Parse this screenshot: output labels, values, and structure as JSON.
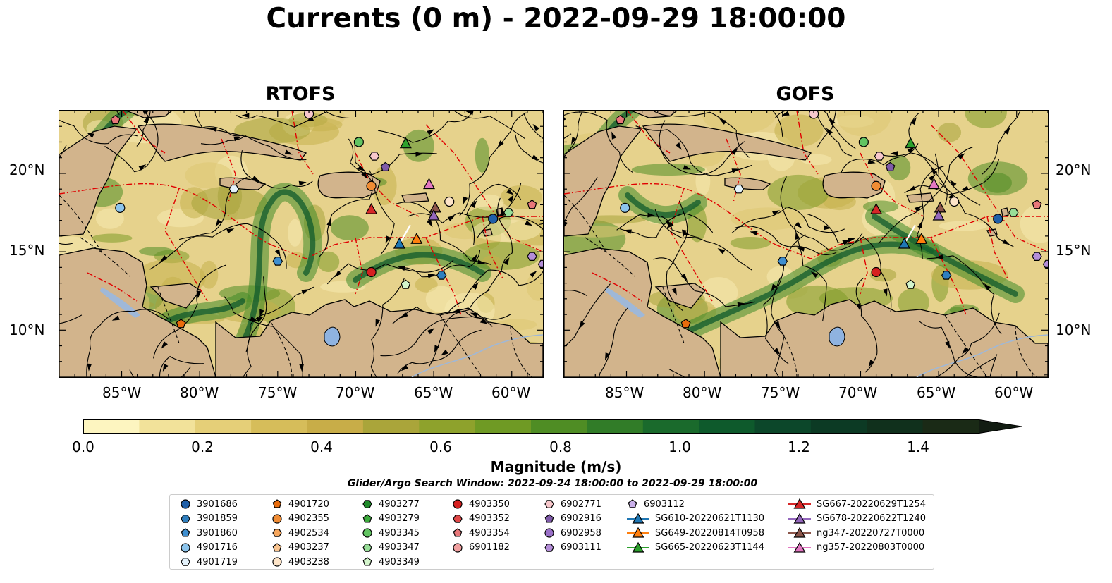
{
  "title": "Currents (0 m) - 2022-09-29 18:00:00",
  "panels": [
    {
      "title": "RTOFS"
    },
    {
      "title": "GOFS"
    }
  ],
  "lon_ticks": [
    "85°W",
    "80°W",
    "75°W",
    "70°W",
    "65°W",
    "60°W"
  ],
  "lat_ticks": [
    "20°N",
    "15°N",
    "10°N"
  ],
  "colorbar": {
    "label": "Magnitude (m/s)",
    "ticks": [
      "0.0",
      "0.2",
      "0.4",
      "0.6",
      "0.8",
      "1.0",
      "1.2",
      "1.4"
    ],
    "colors": [
      "#fdf5c0",
      "#f2e29a",
      "#e5cf78",
      "#d6bd5a",
      "#c8ad48",
      "#aaa53a",
      "#8ea22c",
      "#6f9a24",
      "#4f8d24",
      "#317c28",
      "#1a6a2c",
      "#0e5a2c",
      "#0c472a",
      "#0c3a24",
      "#10301c",
      "#1a2a16"
    ]
  },
  "search_window": "Glider/Argo Search Window: 2022-09-24 18:00:00 to 2022-09-29 18:00:00",
  "legend": {
    "columns": [
      [
        {
          "label": "3901686",
          "shape": "circle",
          "color": "#1f5fa8"
        },
        {
          "label": "3901859",
          "shape": "hexagon",
          "color": "#2f7fbf"
        },
        {
          "label": "3901860",
          "shape": "pentagon",
          "color": "#3f8fd0"
        },
        {
          "label": "4901716",
          "shape": "circle",
          "color": "#8cc4ec"
        },
        {
          "label": "4901719",
          "shape": "hexagon",
          "color": "#e4f2fb"
        }
      ],
      [
        {
          "label": "4901720",
          "shape": "pentagon",
          "color": "#e86c0c"
        },
        {
          "label": "4902355",
          "shape": "circle",
          "color": "#f08c34"
        },
        {
          "label": "4902534",
          "shape": "hexagon",
          "color": "#f6a65c"
        },
        {
          "label": "4903237",
          "shape": "pentagon",
          "color": "#f9c490"
        },
        {
          "label": "4903238",
          "shape": "circle",
          "color": "#fde4c8"
        }
      ],
      [
        {
          "label": "4903277",
          "shape": "hexagon",
          "color": "#1f8a2a"
        },
        {
          "label": "4903279",
          "shape": "pentagon",
          "color": "#3caa3c"
        },
        {
          "label": "4903345",
          "shape": "circle",
          "color": "#62c462"
        },
        {
          "label": "4903347",
          "shape": "hexagon",
          "color": "#98de98"
        },
        {
          "label": "4903349",
          "shape": "pentagon",
          "color": "#d4f5cc"
        }
      ],
      [
        {
          "label": "4903350",
          "shape": "circle",
          "color": "#d62020"
        },
        {
          "label": "4903352",
          "shape": "hexagon",
          "color": "#e04848"
        },
        {
          "label": "4903354",
          "shape": "pentagon",
          "color": "#e8787a"
        },
        {
          "label": "6901182",
          "shape": "circle",
          "color": "#f0a0a0"
        }
      ],
      [
        {
          "label": "6902771",
          "shape": "hexagon",
          "color": "#f8c8cc"
        },
        {
          "label": "6902916",
          "shape": "pentagon",
          "color": "#7f5aa8"
        },
        {
          "label": "6902958",
          "shape": "circle",
          "color": "#9a70c8"
        },
        {
          "label": "6903111",
          "shape": "hexagon",
          "color": "#b48ed8"
        }
      ],
      [
        {
          "label": "6903112",
          "shape": "pentagon",
          "color": "#cab0ea"
        },
        {
          "label": "SG610-20220621T1130",
          "shape": "triangle",
          "color": "#1f77b4"
        },
        {
          "label": "SG649-20220814T0958",
          "shape": "triangle",
          "color": "#ff7f0e"
        },
        {
          "label": "SG665-20220623T1144",
          "shape": "triangle",
          "color": "#2ca02c"
        }
      ],
      [
        {
          "label": "SG667-20220629T1254",
          "shape": "triangle",
          "color": "#d62728"
        },
        {
          "label": "SG678-20220622T1240",
          "shape": "triangle",
          "color": "#9467bd"
        },
        {
          "label": "ng347-20220727T0000",
          "shape": "triangle",
          "color": "#8c564b"
        },
        {
          "label": "ng357-20220803T0000",
          "shape": "triangle",
          "color": "#e377c2"
        }
      ]
    ]
  },
  "map_extent": {
    "lon": [
      -89,
      -58
    ],
    "lat": [
      7,
      24
    ]
  },
  "markers": [
    {
      "lon": -85.1,
      "lat": 17.8,
      "shape": "circle",
      "color": "#8cc4ec"
    },
    {
      "lon": -77.8,
      "lat": 19.0,
      "shape": "hexagon",
      "color": "#e4f2fb"
    },
    {
      "lon": -85.4,
      "lat": 23.4,
      "shape": "pentagon",
      "color": "#e8787a"
    },
    {
      "lon": -73.0,
      "lat": 23.8,
      "shape": "circle",
      "color": "#f8c8cc"
    },
    {
      "lon": -69.8,
      "lat": 22.0,
      "shape": "circle",
      "color": "#62c462"
    },
    {
      "lon": -68.8,
      "lat": 21.1,
      "shape": "hexagon",
      "color": "#f8c8cc"
    },
    {
      "lon": -68.1,
      "lat": 20.4,
      "shape": "pentagon",
      "color": "#7f5aa8"
    },
    {
      "lon": -69.0,
      "lat": 19.2,
      "shape": "circle",
      "color": "#f08c34"
    },
    {
      "lon": -66.8,
      "lat": 21.9,
      "shape": "triangle",
      "color": "#2ca02c"
    },
    {
      "lon": -69.0,
      "lat": 17.7,
      "shape": "triangle",
      "color": "#d62728"
    },
    {
      "lon": -65.3,
      "lat": 19.3,
      "shape": "triangle",
      "color": "#e377c2"
    },
    {
      "lon": -64.9,
      "lat": 17.8,
      "shape": "triangle",
      "color": "#8c564b"
    },
    {
      "lon": -65.0,
      "lat": 17.3,
      "shape": "triangle",
      "color": "#9467bd"
    },
    {
      "lon": -64.0,
      "lat": 18.2,
      "shape": "circle",
      "color": "#fde4c8"
    },
    {
      "lon": -61.2,
      "lat": 17.1,
      "shape": "circle",
      "color": "#1f5fa8"
    },
    {
      "lon": -60.2,
      "lat": 17.5,
      "shape": "hexagon",
      "color": "#98de98"
    },
    {
      "lon": -58.7,
      "lat": 18.0,
      "shape": "pentagon",
      "color": "#e8787a"
    },
    {
      "lon": -58.7,
      "lat": 14.7,
      "shape": "hexagon",
      "color": "#b48ed8"
    },
    {
      "lon": -58.0,
      "lat": 14.2,
      "shape": "hexagon",
      "color": "#b48ed8"
    },
    {
      "lon": -67.2,
      "lat": 15.5,
      "shape": "triangle",
      "color": "#1f77b4"
    },
    {
      "lon": -66.1,
      "lat": 15.8,
      "shape": "triangle",
      "color": "#ff7f0e"
    },
    {
      "lon": -75.0,
      "lat": 14.4,
      "shape": "hexagon",
      "color": "#3f8fd0"
    },
    {
      "lon": -69.0,
      "lat": 13.7,
      "shape": "circle",
      "color": "#d62020"
    },
    {
      "lon": -64.5,
      "lat": 13.5,
      "shape": "hexagon",
      "color": "#2f7fbf"
    },
    {
      "lon": -66.8,
      "lat": 12.9,
      "shape": "pentagon",
      "color": "#d4f5cc"
    },
    {
      "lon": -81.2,
      "lat": 10.4,
      "shape": "pentagon",
      "color": "#e86c0c"
    }
  ]
}
